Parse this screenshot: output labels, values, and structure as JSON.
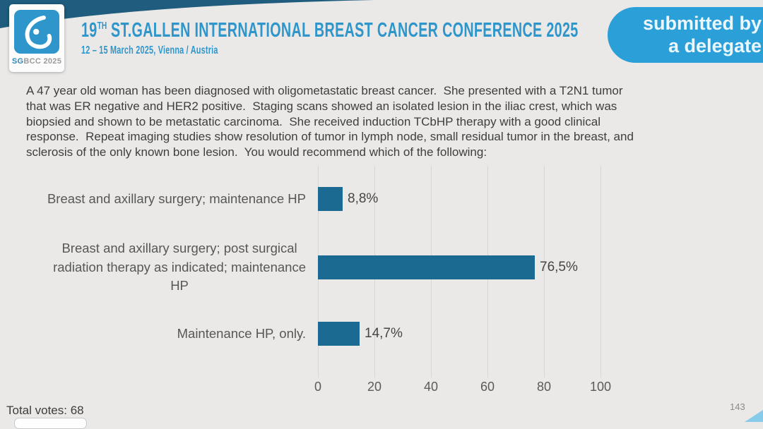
{
  "header": {
    "logo": {
      "caption_sg": "SG",
      "caption_rest": "BCC 2025"
    },
    "title_num": "19",
    "title_sup": "TH",
    "title_rest": " ST.GALLEN INTERNATIONAL BREAST CANCER CONFERENCE 2025",
    "subtitle": "12 – 15 March 2025, Vienna / Austria",
    "badge": {
      "line1": "submitted by",
      "line2": "a delegate"
    }
  },
  "question": "A 47 year old woman has been diagnosed with oligometastatic breast cancer.  She presented with a T2N1 tumor\nthat was ER negative and HER2 positive.  Staging scans showed an isolated lesion in the iliac crest, which was\nbiopsied and shown to be metastatic carcinoma.  She received induction TCbHP therapy with a good clinical\nresponse.  Repeat imaging studies show resolution of tumor in lymph node, small residual tumor in the breast, and\nsclerosis of the only known bone lesion.  You would recommend which of the following:",
  "chart_data": {
    "type": "bar",
    "orientation": "horizontal",
    "categories": [
      "Breast and axillary surgery; maintenance HP",
      "Breast and axillary surgery; post surgical\nradiation therapy as indicated; maintenance\nHP",
      "Maintenance HP, only."
    ],
    "values": [
      8.8,
      76.5,
      14.7
    ],
    "value_labels": [
      "8,8%",
      "76,5%",
      "14,7%"
    ],
    "ticks": [
      "0",
      "20",
      "40",
      "60",
      "80",
      "100"
    ],
    "xlim": [
      0,
      100
    ],
    "grid": true,
    "bar_color": "#1A6A92",
    "title": "",
    "xlabel": "",
    "ylabel": ""
  },
  "footer": {
    "total_votes": "Total votes: 68",
    "page_number": "143"
  },
  "colors": {
    "accent_blue": "#2E96CB",
    "badge_blue": "#2B9FD8",
    "ribbon_dark": "#1F5C7D",
    "bar_teal": "#1A6A92",
    "background": "#EAE9E7"
  }
}
